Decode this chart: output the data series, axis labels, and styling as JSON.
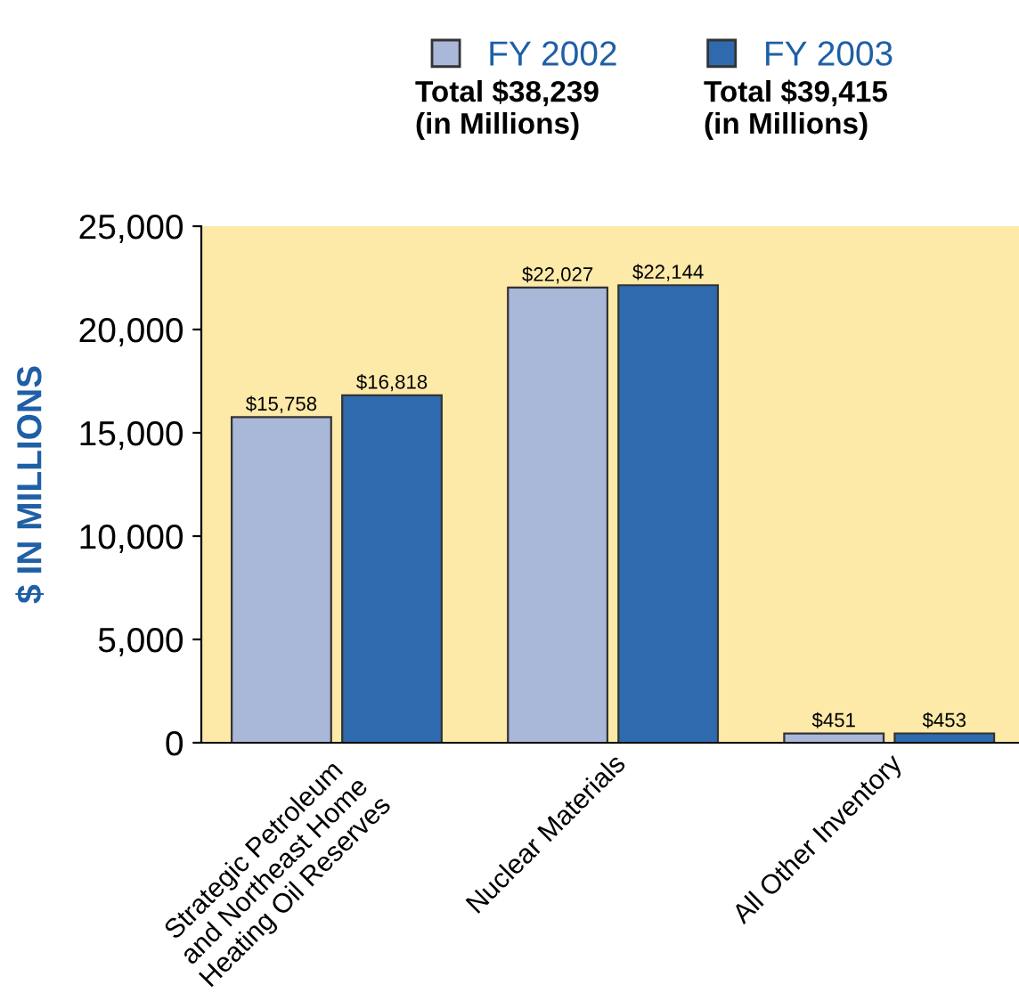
{
  "chart_data": {
    "type": "bar",
    "categories": [
      "Strategic Petroleum\nand Northeast Home\nHeating Oil Reserves",
      "Nuclear Materials",
      "All Other Inventory"
    ],
    "series": [
      {
        "name": "FY 2002",
        "color": "#a9b8d9",
        "values": [
          15758,
          22027,
          451
        ],
        "value_labels": [
          "$15,758",
          "$22,027",
          "$451"
        ]
      },
      {
        "name": "FY 2003",
        "color": "#2e6aad",
        "values": [
          16818,
          22144,
          453
        ],
        "value_labels": [
          "$16,818",
          "$22,144",
          "$453"
        ]
      }
    ],
    "ylabel": "$ IN MILLIONS",
    "ylim": [
      0,
      25000
    ],
    "yticks": [
      0,
      {
        "value": 5000,
        "label": "5,000"
      },
      {
        "value": 10000,
        "label": "10,000"
      },
      {
        "value": 15000,
        "label": "15,000"
      },
      {
        "value": 20000,
        "label": "20,000"
      },
      {
        "value": 25000,
        "label": "25,000"
      }
    ],
    "annotations": [
      "Total $38,239\n(in Millions)",
      "Total $39,415\n(in Millions)"
    ],
    "legend": "top",
    "grid": false
  }
}
